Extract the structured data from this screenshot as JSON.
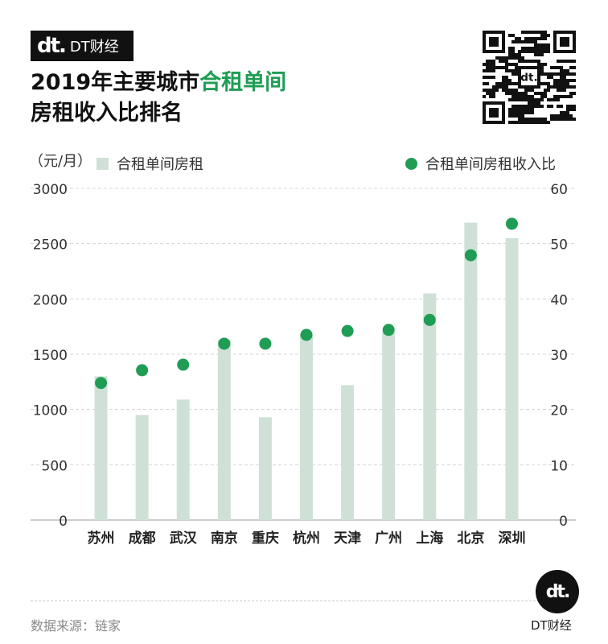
{
  "brand": {
    "logo": "dt.",
    "name": "DT财经"
  },
  "title": {
    "line1_prefix": "2019年主要城市",
    "line1_highlight": "合租单间",
    "line2": "房租收入比排名"
  },
  "colors": {
    "bar": "#cfe1d6",
    "dot": "#1f9d55",
    "highlight": "#1f9d55"
  },
  "icons": {
    "qr": "qr-code-icon"
  },
  "legend": {
    "unit": "（元/月）",
    "bar_label": "合租单间房租",
    "dot_label": "合租单间房租收入比"
  },
  "chart_data": {
    "type": "bar",
    "categories": [
      "苏州",
      "成都",
      "武汉",
      "南京",
      "重庆",
      "杭州",
      "天津",
      "广州",
      "上海",
      "北京",
      "深圳"
    ],
    "series": [
      {
        "name": "合租单间房租",
        "kind": "bar",
        "axis": "left",
        "values": [
          1300,
          950,
          1090,
          1630,
          930,
          1680,
          1220,
          1700,
          2050,
          2690,
          2550
        ]
      },
      {
        "name": "合租单间房租收入比",
        "kind": "scatter",
        "axis": "right",
        "values": [
          24.8,
          27.1,
          28.1,
          31.9,
          31.9,
          33.5,
          34.2,
          34.4,
          36.2,
          47.9,
          53.6
        ]
      }
    ],
    "ylim": [
      0,
      3000
    ],
    "y_ticks": [
      "0",
      "500",
      "1000",
      "1500",
      "2000",
      "2500",
      "3000"
    ],
    "y2lim": [
      0,
      60
    ],
    "y2_ticks": [
      "0",
      "10",
      "20",
      "30",
      "40",
      "50",
      "60"
    ],
    "ylabel": "（元/月）",
    "grid": true,
    "legend_position": "top"
  },
  "footer": {
    "source": "数据来源：链家",
    "badge_logo": "dt.",
    "badge_name": "DT财经"
  }
}
